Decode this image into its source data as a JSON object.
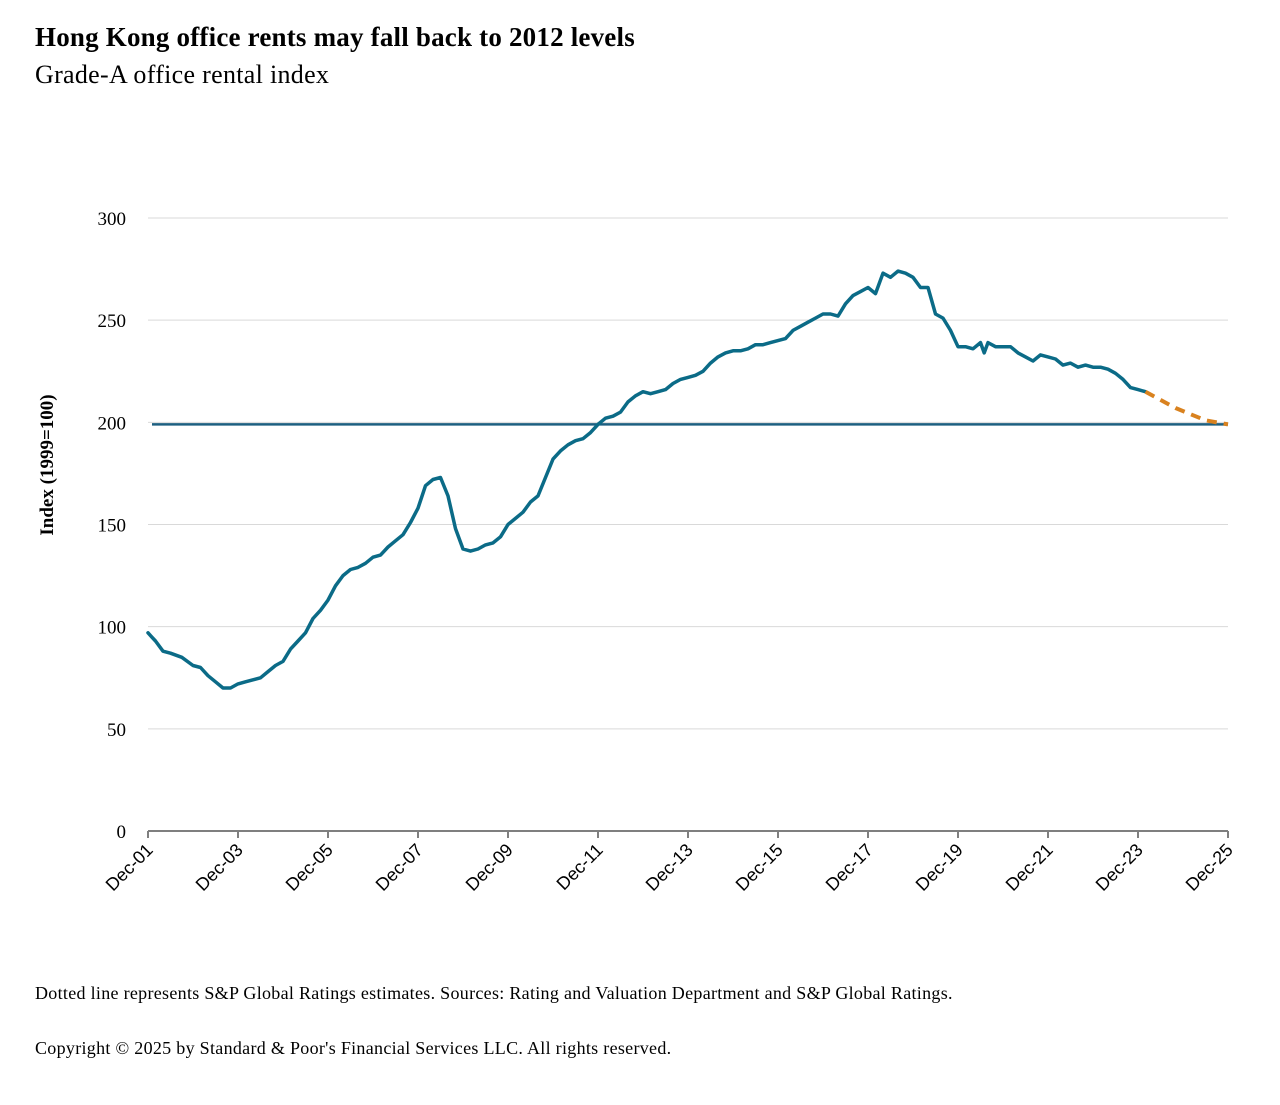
{
  "title": "Hong Kong office rents may fall back to 2012 levels",
  "subtitle": "Grade-A office rental index",
  "footnote": "Dotted line represents S&P Global Ratings estimates. Sources: Rating and Valuation Department and S&P Global Ratings.",
  "copyright": "Copyright © 2025 by Standard & Poor's Financial Services LLC. All rights reserved.",
  "colors": {
    "actual": "#0b6b87",
    "estimate": "#d9821f",
    "reference": "#1d5f80",
    "grid": "#d9d9d9",
    "axis": "#7f7f7f"
  },
  "chart_data": {
    "type": "line",
    "title": "Hong Kong office rents may fall back to 2012 levels",
    "subtitle": "Grade-A office rental index",
    "xlabel": "",
    "ylabel": "Index (1999=100)",
    "ylim": [
      0,
      300
    ],
    "yticks": [
      0,
      50,
      100,
      150,
      200,
      250,
      300
    ],
    "x_tick_labels": [
      "Dec-01",
      "Dec-03",
      "Dec-05",
      "Dec-07",
      "Dec-09",
      "Dec-11",
      "Dec-13",
      "Dec-15",
      "Dec-17",
      "Dec-19",
      "Dec-21",
      "Dec-23",
      "Dec-25"
    ],
    "grid": true,
    "legend": "none",
    "reference_line": {
      "y": 199
    },
    "series": [
      {
        "style": "solid",
        "points": [
          [
            "2001-12",
            97
          ],
          [
            "2002-01",
            95
          ],
          [
            "2002-02",
            93
          ],
          [
            "2002-04",
            88
          ],
          [
            "2002-06",
            87
          ],
          [
            "2002-09",
            85
          ],
          [
            "2002-12",
            81
          ],
          [
            "2003-02",
            80
          ],
          [
            "2003-04",
            76
          ],
          [
            "2003-06",
            73
          ],
          [
            "2003-08",
            70
          ],
          [
            "2003-10",
            70
          ],
          [
            "2003-12",
            72
          ],
          [
            "2004-02",
            73
          ],
          [
            "2004-04",
            74
          ],
          [
            "2004-06",
            75
          ],
          [
            "2004-08",
            78
          ],
          [
            "2004-10",
            81
          ],
          [
            "2004-12",
            83
          ],
          [
            "2005-02",
            89
          ],
          [
            "2005-04",
            93
          ],
          [
            "2005-06",
            97
          ],
          [
            "2005-08",
            104
          ],
          [
            "2005-10",
            108
          ],
          [
            "2005-12",
            113
          ],
          [
            "2006-02",
            120
          ],
          [
            "2006-04",
            125
          ],
          [
            "2006-06",
            128
          ],
          [
            "2006-08",
            129
          ],
          [
            "2006-10",
            131
          ],
          [
            "2006-12",
            134
          ],
          [
            "2007-02",
            135
          ],
          [
            "2007-04",
            139
          ],
          [
            "2007-06",
            142
          ],
          [
            "2007-08",
            145
          ],
          [
            "2007-10",
            151
          ],
          [
            "2007-12",
            158
          ],
          [
            "2008-02",
            169
          ],
          [
            "2008-04",
            172
          ],
          [
            "2008-06",
            173
          ],
          [
            "2008-08",
            164
          ],
          [
            "2008-10",
            148
          ],
          [
            "2008-12",
            138
          ],
          [
            "2009-02",
            137
          ],
          [
            "2009-04",
            138
          ],
          [
            "2009-06",
            140
          ],
          [
            "2009-08",
            141
          ],
          [
            "2009-10",
            144
          ],
          [
            "2009-12",
            150
          ],
          [
            "2010-02",
            153
          ],
          [
            "2010-04",
            156
          ],
          [
            "2010-06",
            161
          ],
          [
            "2010-08",
            164
          ],
          [
            "2010-10",
            173
          ],
          [
            "2010-12",
            182
          ],
          [
            "2011-02",
            186
          ],
          [
            "2011-04",
            189
          ],
          [
            "2011-06",
            191
          ],
          [
            "2011-08",
            192
          ],
          [
            "2011-10",
            195
          ],
          [
            "2011-12",
            199
          ],
          [
            "2012-02",
            202
          ],
          [
            "2012-04",
            203
          ],
          [
            "2012-06",
            205
          ],
          [
            "2012-08",
            210
          ],
          [
            "2012-10",
            213
          ],
          [
            "2012-12",
            215
          ],
          [
            "2013-02",
            214
          ],
          [
            "2013-04",
            215
          ],
          [
            "2013-06",
            216
          ],
          [
            "2013-08",
            219
          ],
          [
            "2013-10",
            221
          ],
          [
            "2013-12",
            222
          ],
          [
            "2014-02",
            223
          ],
          [
            "2014-04",
            225
          ],
          [
            "2014-06",
            229
          ],
          [
            "2014-08",
            232
          ],
          [
            "2014-10",
            234
          ],
          [
            "2014-12",
            235
          ],
          [
            "2015-02",
            235
          ],
          [
            "2015-04",
            236
          ],
          [
            "2015-06",
            238
          ],
          [
            "2015-08",
            238
          ],
          [
            "2015-10",
            239
          ],
          [
            "2015-12",
            240
          ],
          [
            "2016-02",
            241
          ],
          [
            "2016-04",
            245
          ],
          [
            "2016-06",
            247
          ],
          [
            "2016-08",
            249
          ],
          [
            "2016-10",
            251
          ],
          [
            "2016-12",
            253
          ],
          [
            "2017-02",
            253
          ],
          [
            "2017-04",
            252
          ],
          [
            "2017-06",
            258
          ],
          [
            "2017-08",
            262
          ],
          [
            "2017-10",
            264
          ],
          [
            "2017-12",
            266
          ],
          [
            "2018-02",
            263
          ],
          [
            "2018-04",
            273
          ],
          [
            "2018-06",
            271
          ],
          [
            "2018-08",
            274
          ],
          [
            "2018-10",
            273
          ],
          [
            "2018-12",
            271
          ],
          [
            "2019-02",
            266
          ],
          [
            "2019-04",
            266
          ],
          [
            "2019-06",
            253
          ],
          [
            "2019-08",
            251
          ],
          [
            "2019-10",
            245
          ],
          [
            "2019-12",
            237
          ],
          [
            "2020-02",
            237
          ],
          [
            "2020-04",
            236
          ],
          [
            "2020-06",
            239
          ],
          [
            "2020-07",
            234
          ],
          [
            "2020-08",
            239
          ],
          [
            "2020-10",
            237
          ],
          [
            "2020-12",
            237
          ],
          [
            "2021-02",
            237
          ],
          [
            "2021-04",
            234
          ],
          [
            "2021-06",
            232
          ],
          [
            "2021-08",
            230
          ],
          [
            "2021-10",
            233
          ],
          [
            "2021-12",
            232
          ],
          [
            "2022-02",
            231
          ],
          [
            "2022-04",
            228
          ],
          [
            "2022-06",
            229
          ],
          [
            "2022-08",
            227
          ],
          [
            "2022-10",
            228
          ],
          [
            "2022-12",
            227
          ],
          [
            "2023-02",
            227
          ],
          [
            "2023-04",
            226
          ],
          [
            "2023-06",
            224
          ],
          [
            "2023-08",
            221
          ],
          [
            "2023-10",
            217
          ],
          [
            "2023-12",
            216
          ],
          [
            "2024-02",
            215
          ]
        ]
      },
      {
        "style": "dotted",
        "points": [
          [
            "2024-02",
            215
          ],
          [
            "2024-06",
            211
          ],
          [
            "2024-10",
            207
          ],
          [
            "2025-02",
            204
          ],
          [
            "2025-06",
            201
          ],
          [
            "2025-12",
            199
          ]
        ]
      }
    ]
  }
}
